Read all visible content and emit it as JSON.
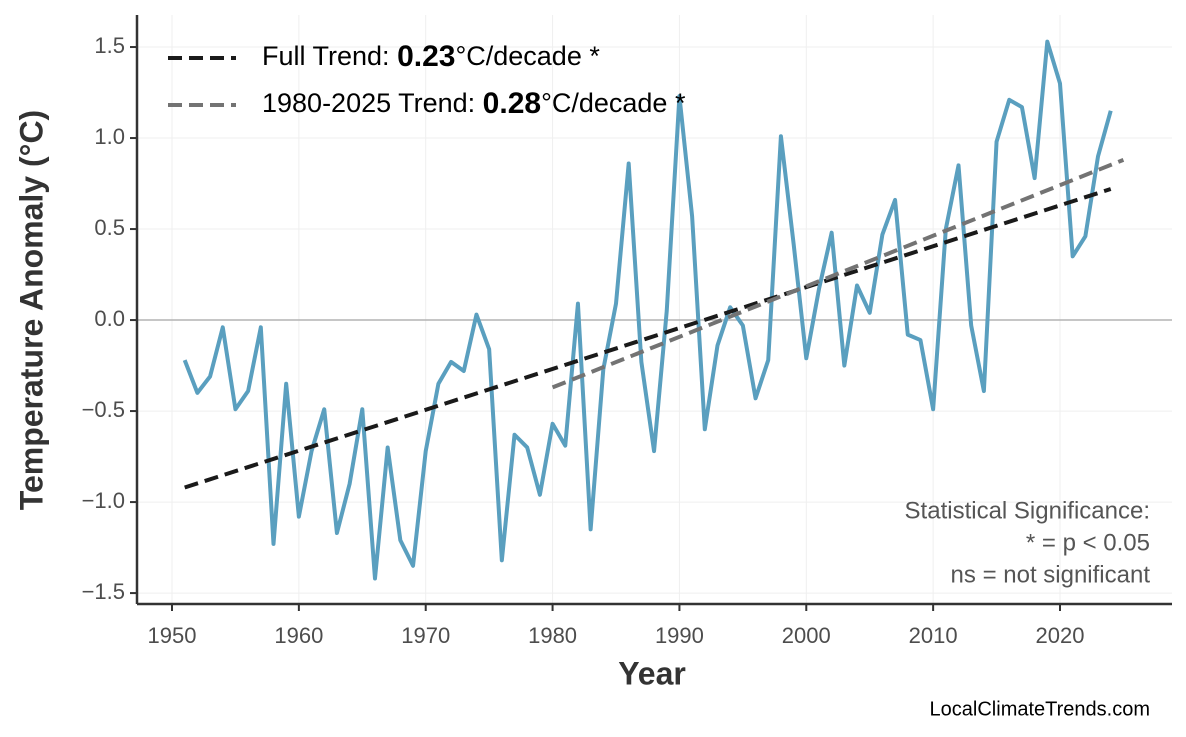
{
  "chart_data": {
    "type": "line",
    "x_label": "Year",
    "y_label": "Temperature Anomaly (°C)",
    "xlim": [
      1947.24,
      2028.83
    ],
    "ylim": [
      -1.56,
      1.676
    ],
    "xticks": [
      1950,
      1960,
      1970,
      1980,
      1990,
      2000,
      2010,
      2020
    ],
    "yticks": [
      {
        "value": -1.5,
        "label": "−1.5"
      },
      {
        "value": -1.0,
        "label": "−1.0"
      },
      {
        "value": -0.5,
        "label": "−0.5"
      },
      {
        "value": 0,
        "label": "0.0"
      },
      0.5,
      {
        "value": 1.0,
        "label": "1.0"
      },
      1.5
    ],
    "grid": true,
    "reference_line": 0,
    "legend_position": "upper left",
    "series": [
      {
        "color": "#5a9fbf",
        "dash": "solid",
        "x": [
          1951,
          1952,
          1953,
          1954,
          1955,
          1956,
          1957,
          1958,
          1959,
          1960,
          1961,
          1962,
          1963,
          1964,
          1965,
          1966,
          1967,
          1968,
          1969,
          1970,
          1971,
          1972,
          1973,
          1974,
          1975,
          1976,
          1977,
          1978,
          1979,
          1980,
          1981,
          1982,
          1983,
          1984,
          1985,
          1986,
          1987,
          1988,
          1989,
          1990,
          1991,
          1992,
          1993,
          1994,
          1995,
          1996,
          1997,
          1998,
          1999,
          2000,
          2001,
          2002,
          2003,
          2004,
          2005,
          2006,
          2007,
          2008,
          2009,
          2010,
          2011,
          2012,
          2013,
          2014,
          2015,
          2016,
          2017,
          2018,
          2019,
          2020,
          2021,
          2022,
          2023,
          2024
        ],
        "values": [
          -0.22,
          -0.4,
          -0.31,
          -0.04,
          -0.49,
          -0.39,
          -0.04,
          -1.23,
          -0.35,
          -1.08,
          -0.72,
          -0.49,
          -1.17,
          -0.9,
          -0.49,
          -1.42,
          -0.7,
          -1.21,
          -1.35,
          -0.72,
          -0.35,
          -0.23,
          -0.28,
          0.03,
          -0.16,
          -1.32,
          -0.63,
          -0.7,
          -0.96,
          -0.57,
          -0.69,
          0.09,
          -1.15,
          -0.27,
          0.09,
          0.86,
          -0.23,
          -0.72,
          0.05,
          1.23,
          0.57,
          -0.6,
          -0.14,
          0.07,
          -0.03,
          -0.43,
          -0.22,
          1.01,
          0.42,
          -0.21,
          0.17,
          0.48,
          -0.25,
          0.19,
          0.04,
          0.47,
          0.66,
          -0.08,
          -0.11,
          -0.49,
          0.5,
          0.85,
          -0.03,
          -0.39,
          0.98,
          1.21,
          1.17,
          0.78,
          1.53,
          1.3,
          0.35,
          0.46,
          0.9,
          1.15
        ]
      },
      {
        "name": "Full Trend: 0.23°C/decade *",
        "color": "#1a1a1a",
        "dash": "dashed",
        "x": [
          1951,
          2024
        ],
        "values": [
          -0.92,
          0.72
        ]
      },
      {
        "name": "1980-2025 Trend: 0.28°C/decade *",
        "color": "#737373",
        "dash": "dashed",
        "x": [
          1980,
          2025
        ],
        "values": [
          -0.37,
          0.88
        ]
      }
    ],
    "annotation": [
      "Statistical Significance:",
      "* = p < 0.05",
      "ns = not significant"
    ],
    "source": "LocalClimateTrends.com"
  }
}
